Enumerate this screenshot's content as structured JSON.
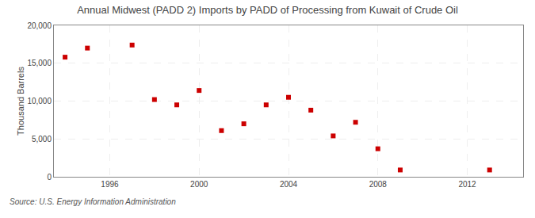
{
  "chart_data": {
    "type": "scatter",
    "title": "Annual Midwest (PADD 2) Imports by PADD of Processing from Kuwait of Crude Oil",
    "ylabel": "Thousand Barrels",
    "annotations": [
      "Source: U.S. Energy Information Administration"
    ],
    "x": [
      1994,
      1995,
      1997,
      1998,
      1999,
      2000,
      2001,
      2002,
      2003,
      2004,
      2005,
      2006,
      2007,
      2008,
      2009,
      2013
    ],
    "values": [
      15800,
      17000,
      17400,
      10200,
      9500,
      11400,
      6100,
      7000,
      9500,
      10500,
      8800,
      5400,
      7200,
      3700,
      900,
      900
    ],
    "color": "#cc0000",
    "marker": "square",
    "xlim": [
      1993.5,
      2014.5
    ],
    "ylim": [
      0,
      20000
    ],
    "xticks": [
      1996,
      2000,
      2004,
      2008,
      2012
    ],
    "yticks": [
      0,
      {
        "value": 5000,
        "label": "5,000"
      },
      {
        "value": 10000,
        "label": "10,000"
      },
      {
        "value": 15000,
        "label": "15,000"
      },
      {
        "value": 20000,
        "label": "20,000"
      }
    ],
    "grid": true
  }
}
